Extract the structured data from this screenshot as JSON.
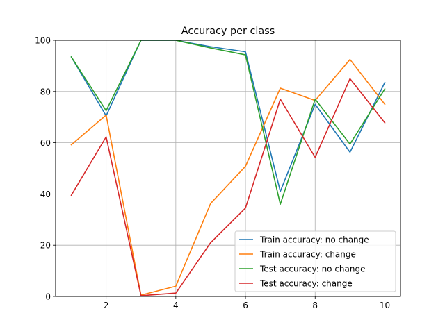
{
  "chart_data": {
    "type": "line",
    "title": "Accuracy per class",
    "xlabel": "",
    "ylabel": "",
    "x": [
      1,
      2,
      3,
      4,
      5,
      6,
      7,
      8,
      9,
      10
    ],
    "xlim": [
      0.55,
      10.45
    ],
    "ylim": [
      0,
      100
    ],
    "xticks": [
      2,
      4,
      6,
      8,
      10
    ],
    "yticks": [
      0,
      20,
      40,
      60,
      80,
      100
    ],
    "grid": true,
    "legend_position": "lower-right",
    "series": [
      {
        "name": "Train accuracy: no change",
        "color": "#1f77b4",
        "values": [
          93.5,
          70.5,
          100,
          100,
          97.5,
          95.5,
          41,
          75,
          56.3,
          83.5
        ]
      },
      {
        "name": "Train accuracy: change",
        "color": "#ff7f0e",
        "values": [
          59.2,
          70.8,
          0.5,
          4,
          36.3,
          50.8,
          81.3,
          76.5,
          92.5,
          75
        ]
      },
      {
        "name": "Test accuracy: no change",
        "color": "#2ca02c",
        "values": [
          93.5,
          72.5,
          100,
          100,
          97,
          94.3,
          36,
          77,
          59.5,
          81
        ]
      },
      {
        "name": "Test accuracy: change",
        "color": "#d62728",
        "values": [
          39.5,
          62.3,
          0.3,
          1.3,
          21,
          34.5,
          77,
          54.3,
          85,
          67.8
        ]
      }
    ]
  }
}
